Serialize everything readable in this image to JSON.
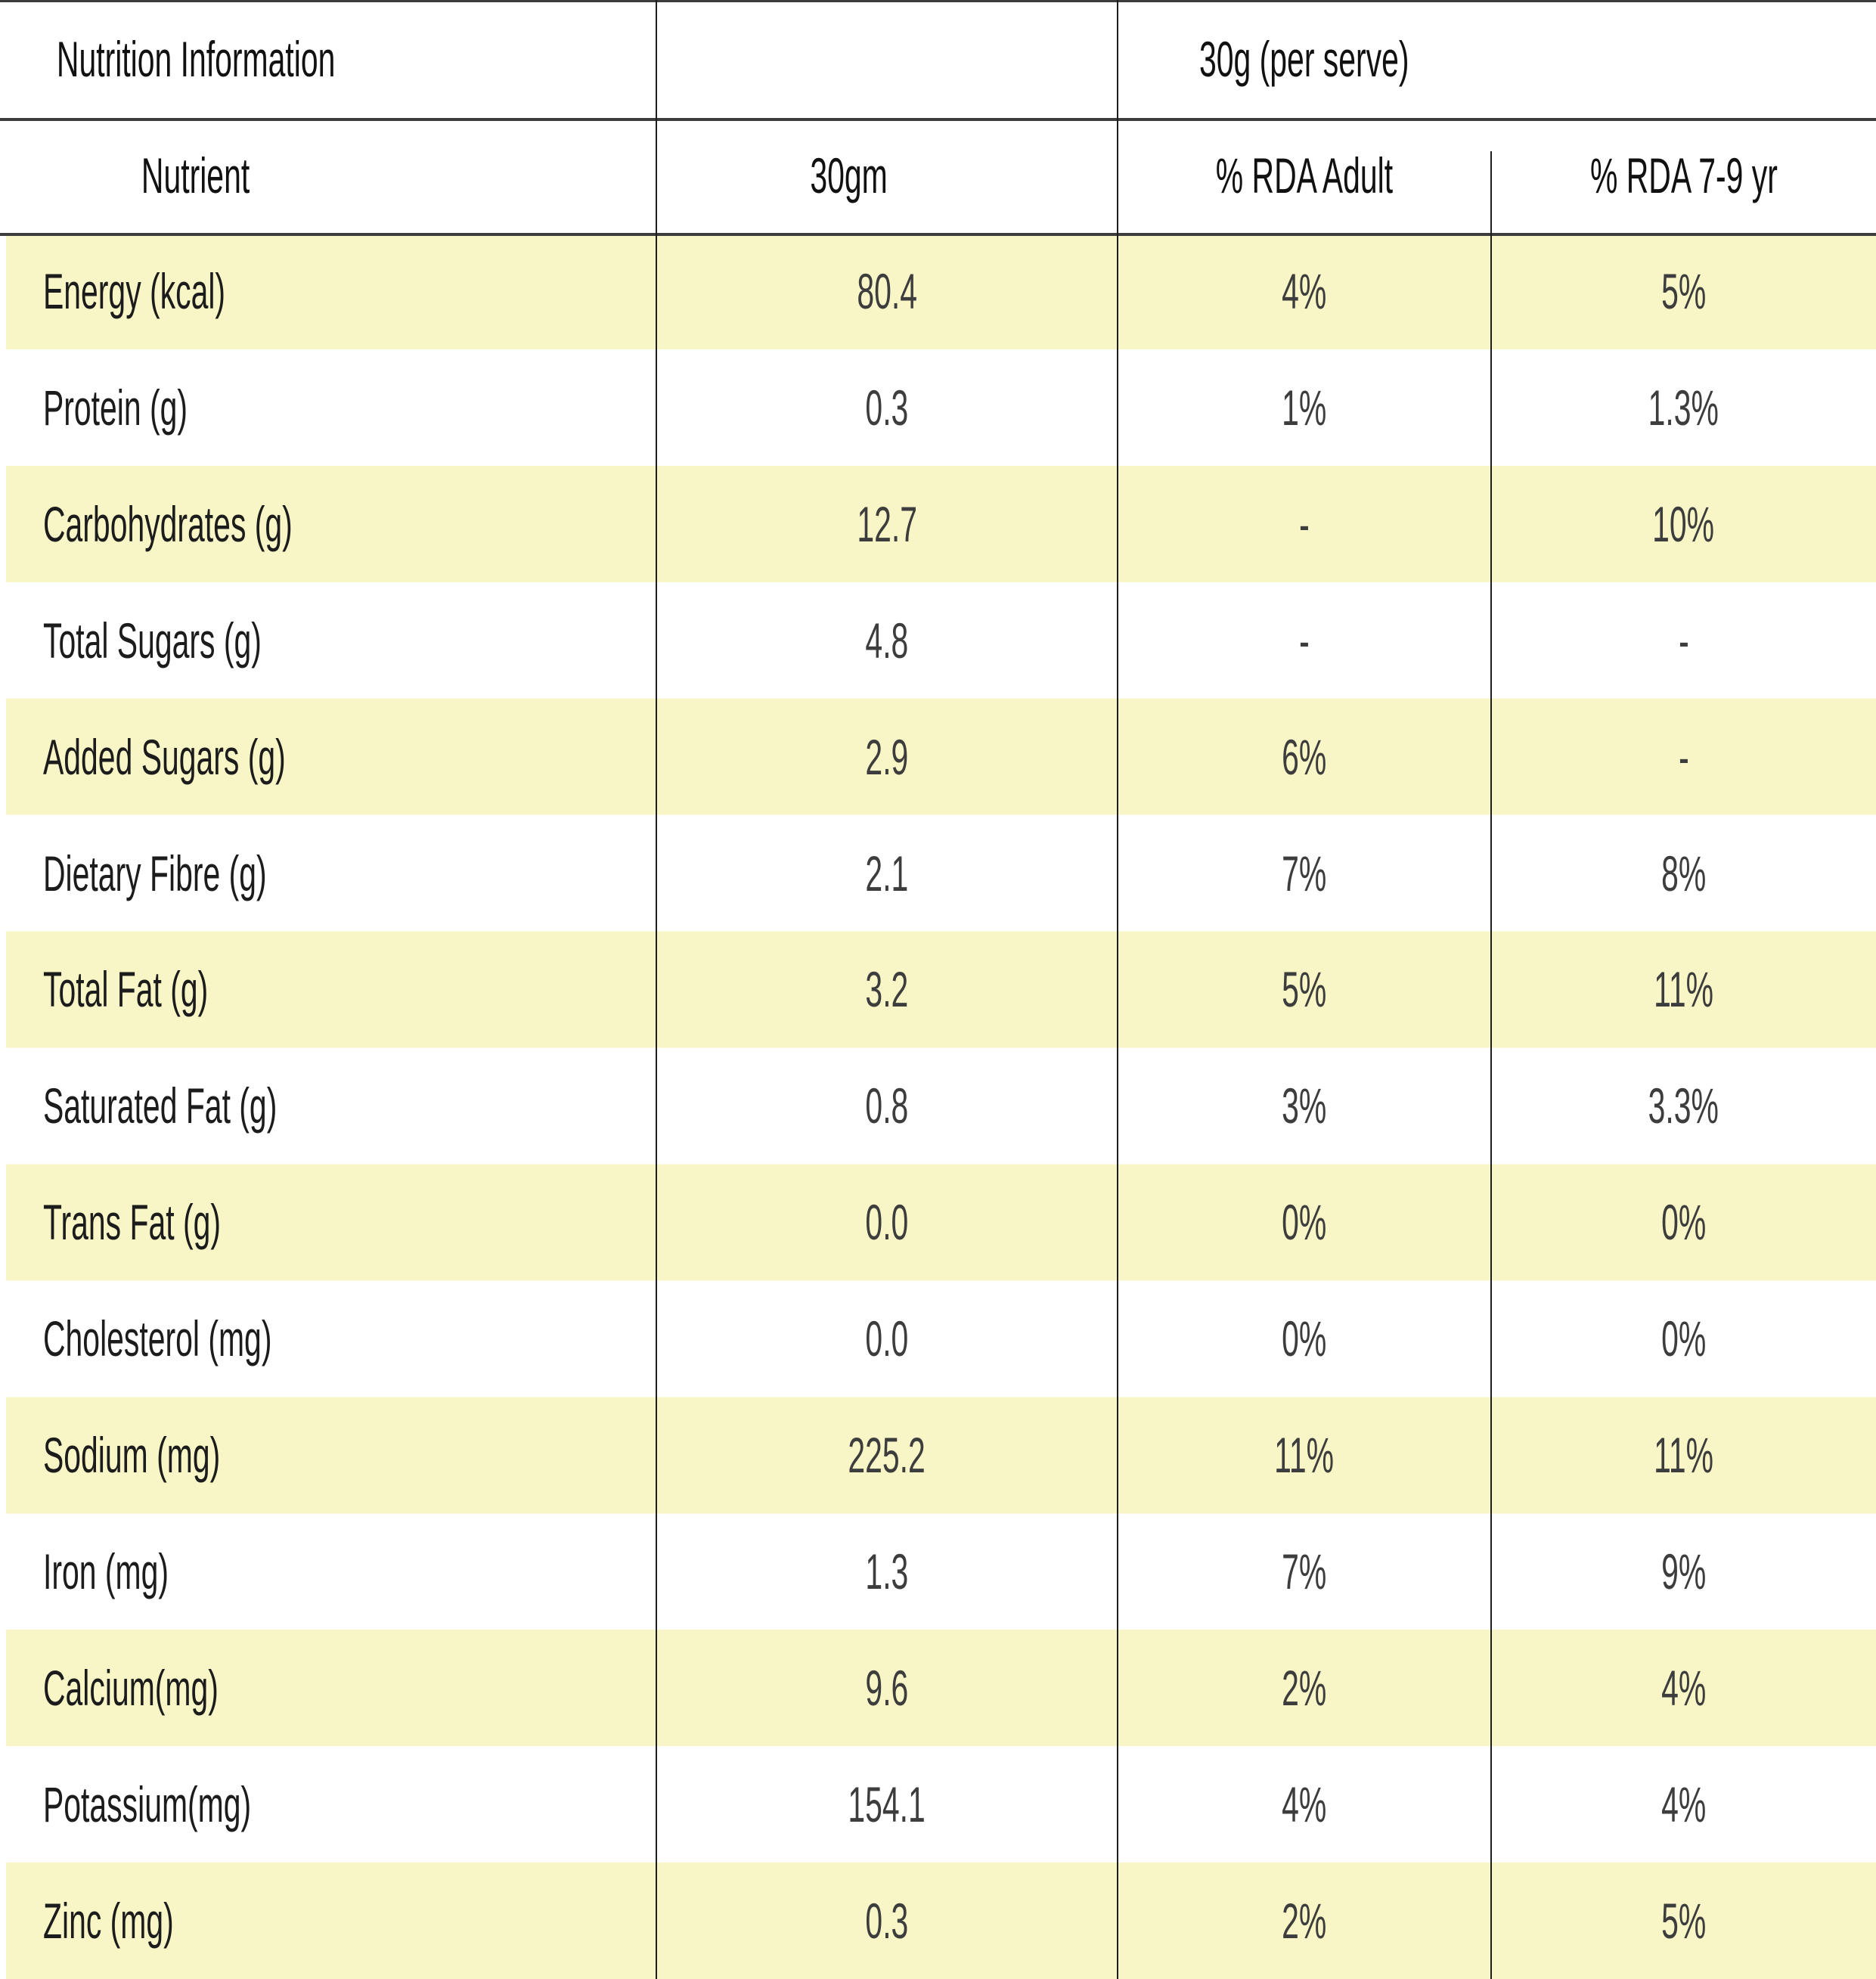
{
  "table": {
    "title": "Nutrition Information",
    "serving": "30g (per serve)",
    "columns": [
      "Nutrient",
      "30gm",
      "% RDA Adult",
      "% RDA 7-9 yr"
    ],
    "rows": [
      {
        "nutrient": "Energy (kcal)",
        "amount": "80.4",
        "rda_adult": "4%",
        "rda_7_9": "5%"
      },
      {
        "nutrient": "Protein (g)",
        "amount": "0.3",
        "rda_adult": "1%",
        "rda_7_9": "1.3%"
      },
      {
        "nutrient": "Carbohydrates (g)",
        "amount": "12.7",
        "rda_adult": "-",
        "rda_7_9": "10%"
      },
      {
        "nutrient": "Total Sugars (g)",
        "amount": "4.8",
        "rda_adult": "-",
        "rda_7_9": "-"
      },
      {
        "nutrient": "Added Sugars (g)",
        "amount": "2.9",
        "rda_adult": "6%",
        "rda_7_9": "-"
      },
      {
        "nutrient": "Dietary Fibre (g)",
        "amount": "2.1",
        "rda_adult": "7%",
        "rda_7_9": "8%"
      },
      {
        "nutrient": "Total Fat (g)",
        "amount": "3.2",
        "rda_adult": "5%",
        "rda_7_9": "11%"
      },
      {
        "nutrient": "Saturated Fat (g)",
        "amount": "0.8",
        "rda_adult": "3%",
        "rda_7_9": "3.3%"
      },
      {
        "nutrient": "Trans Fat (g)",
        "amount": "0.0",
        "rda_adult": "0%",
        "rda_7_9": "0%"
      },
      {
        "nutrient": "Cholesterol (mg)",
        "amount": "0.0",
        "rda_adult": "0%",
        "rda_7_9": "0%"
      },
      {
        "nutrient": "Sodium (mg)",
        "amount": "225.2",
        "rda_adult": "11%",
        "rda_7_9": "11%"
      },
      {
        "nutrient": "Iron (mg)",
        "amount": "1.3",
        "rda_adult": "7%",
        "rda_7_9": "9%"
      },
      {
        "nutrient": "Calcium(mg)",
        "amount": "9.6",
        "rda_adult": "2%",
        "rda_7_9": "4%"
      },
      {
        "nutrient": "Potassium(mg)",
        "amount": "154.1",
        "rda_adult": "4%",
        "rda_7_9": "4%"
      },
      {
        "nutrient": "Zinc (mg)",
        "amount": "0.3",
        "rda_adult": "2%",
        "rda_7_9": "5%"
      }
    ]
  },
  "colors": {
    "row_highlight": "#f8f6c6",
    "header_rule": "#3c3c3c",
    "grid_line": "#1e1e1e",
    "label_text": "#1c1c1c",
    "value_text": "#3d3d3d"
  }
}
